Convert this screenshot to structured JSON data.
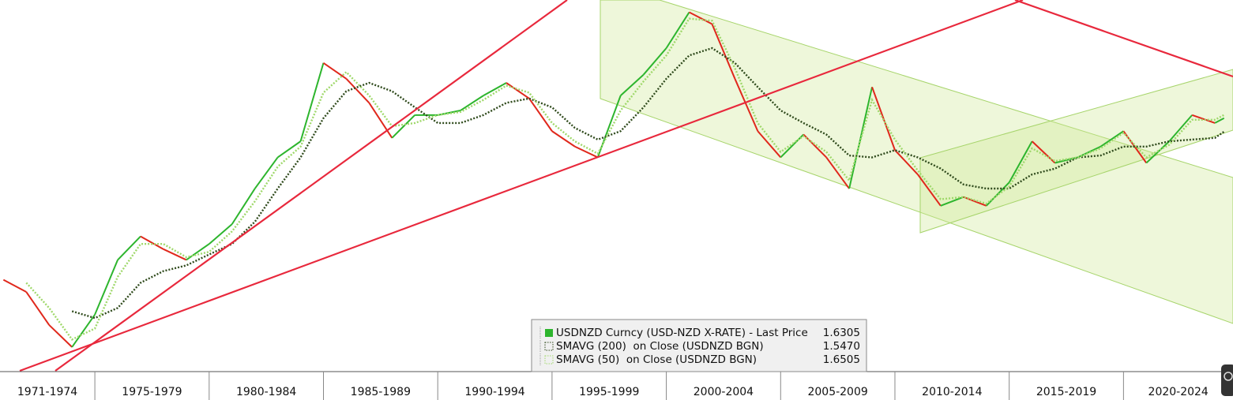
{
  "chart_data": {
    "type": "line",
    "log_scale": true,
    "legend": "bottom",
    "xlim": [
      1970.85,
      2024.79
    ],
    "xticks": [
      1975,
      1980,
      1985,
      1990,
      1995,
      2000,
      2005,
      2010,
      2015,
      2020
    ],
    "categories": [
      "1971-1974",
      "1975-1979",
      "1980-1984",
      "1985-1989",
      "1990-1994",
      "1995-1999",
      "2000-2004",
      "2005-2009",
      "2010-2014",
      "2015-2019",
      "2020-2024"
    ],
    "ylim": [
      0.61,
      2.58
    ],
    "x": [
      1971,
      1972,
      1973,
      1974,
      1975,
      1976,
      1977,
      1978,
      1979,
      1980,
      1981,
      1982,
      1983,
      1984,
      1985,
      1986,
      1987,
      1988,
      1989,
      1990,
      1991,
      1992,
      1993,
      1994,
      1995,
      1996,
      1997,
      1998,
      1999,
      2000,
      2001,
      2002,
      2003,
      2004,
      2005,
      2006,
      2007,
      2008,
      2009,
      2010,
      2011,
      2012,
      2013,
      2014,
      2015,
      2016,
      2017,
      2018,
      2019,
      2020,
      2021,
      2022,
      2023,
      2024,
      2024.4
    ],
    "series": [
      {
        "name": "USDNZD Curncy (USD-NZD X-RATE) - Last Price",
        "style": "updown",
        "color": "#2db52d",
        "down_color": "#e0281c",
        "last_value": 1.6305,
        "values": [
          0.87,
          0.83,
          0.73,
          0.67,
          0.76,
          0.94,
          1.03,
          0.98,
          0.94,
          1.0,
          1.08,
          1.24,
          1.4,
          1.49,
          2.02,
          1.9,
          1.73,
          1.51,
          1.65,
          1.65,
          1.68,
          1.78,
          1.87,
          1.76,
          1.55,
          1.46,
          1.4,
          1.78,
          1.93,
          2.14,
          2.46,
          2.35,
          1.9,
          1.55,
          1.4,
          1.53,
          1.4,
          1.24,
          1.84,
          1.44,
          1.31,
          1.16,
          1.2,
          1.16,
          1.27,
          1.49,
          1.37,
          1.4,
          1.46,
          1.55,
          1.37,
          1.49,
          1.65,
          1.6,
          1.6305
        ]
      },
      {
        "name": "SMAVG (200)  on Close (USDNZD BGN)",
        "style": "dotted",
        "color": "#2f4a1c",
        "last_value": {
          "value": 1.547,
          "label": "1.5470"
        },
        "values": [
          null,
          null,
          null,
          0.77,
          0.75,
          0.78,
          0.86,
          0.9,
          0.92,
          0.96,
          1.0,
          1.09,
          1.24,
          1.4,
          1.63,
          1.81,
          1.87,
          1.81,
          1.7,
          1.6,
          1.6,
          1.65,
          1.73,
          1.76,
          1.7,
          1.57,
          1.5,
          1.55,
          1.7,
          1.9,
          2.08,
          2.14,
          2.02,
          1.84,
          1.68,
          1.6,
          1.53,
          1.41,
          1.4,
          1.44,
          1.4,
          1.34,
          1.26,
          1.24,
          1.24,
          1.31,
          1.34,
          1.4,
          1.41,
          1.46,
          1.46,
          1.49,
          1.5,
          1.51,
          1.547
        ]
      },
      {
        "name": "SMAVG (50)  on Close (USDNZD BGN)",
        "style": "dotted",
        "color": "#9fd86a",
        "last_value": 1.6505,
        "values": [
          null,
          0.86,
          0.78,
          0.69,
          0.72,
          0.88,
          1.0,
          1.0,
          0.95,
          0.97,
          1.05,
          1.18,
          1.35,
          1.46,
          1.8,
          1.95,
          1.78,
          1.58,
          1.6,
          1.65,
          1.67,
          1.75,
          1.85,
          1.8,
          1.6,
          1.49,
          1.42,
          1.68,
          1.88,
          2.08,
          2.4,
          2.38,
          1.98,
          1.6,
          1.43,
          1.52,
          1.43,
          1.28,
          1.75,
          1.5,
          1.33,
          1.19,
          1.2,
          1.17,
          1.25,
          1.45,
          1.38,
          1.4,
          1.45,
          1.54,
          1.4,
          1.47,
          1.62,
          1.62,
          1.6505
        ]
      }
    ]
  }
}
